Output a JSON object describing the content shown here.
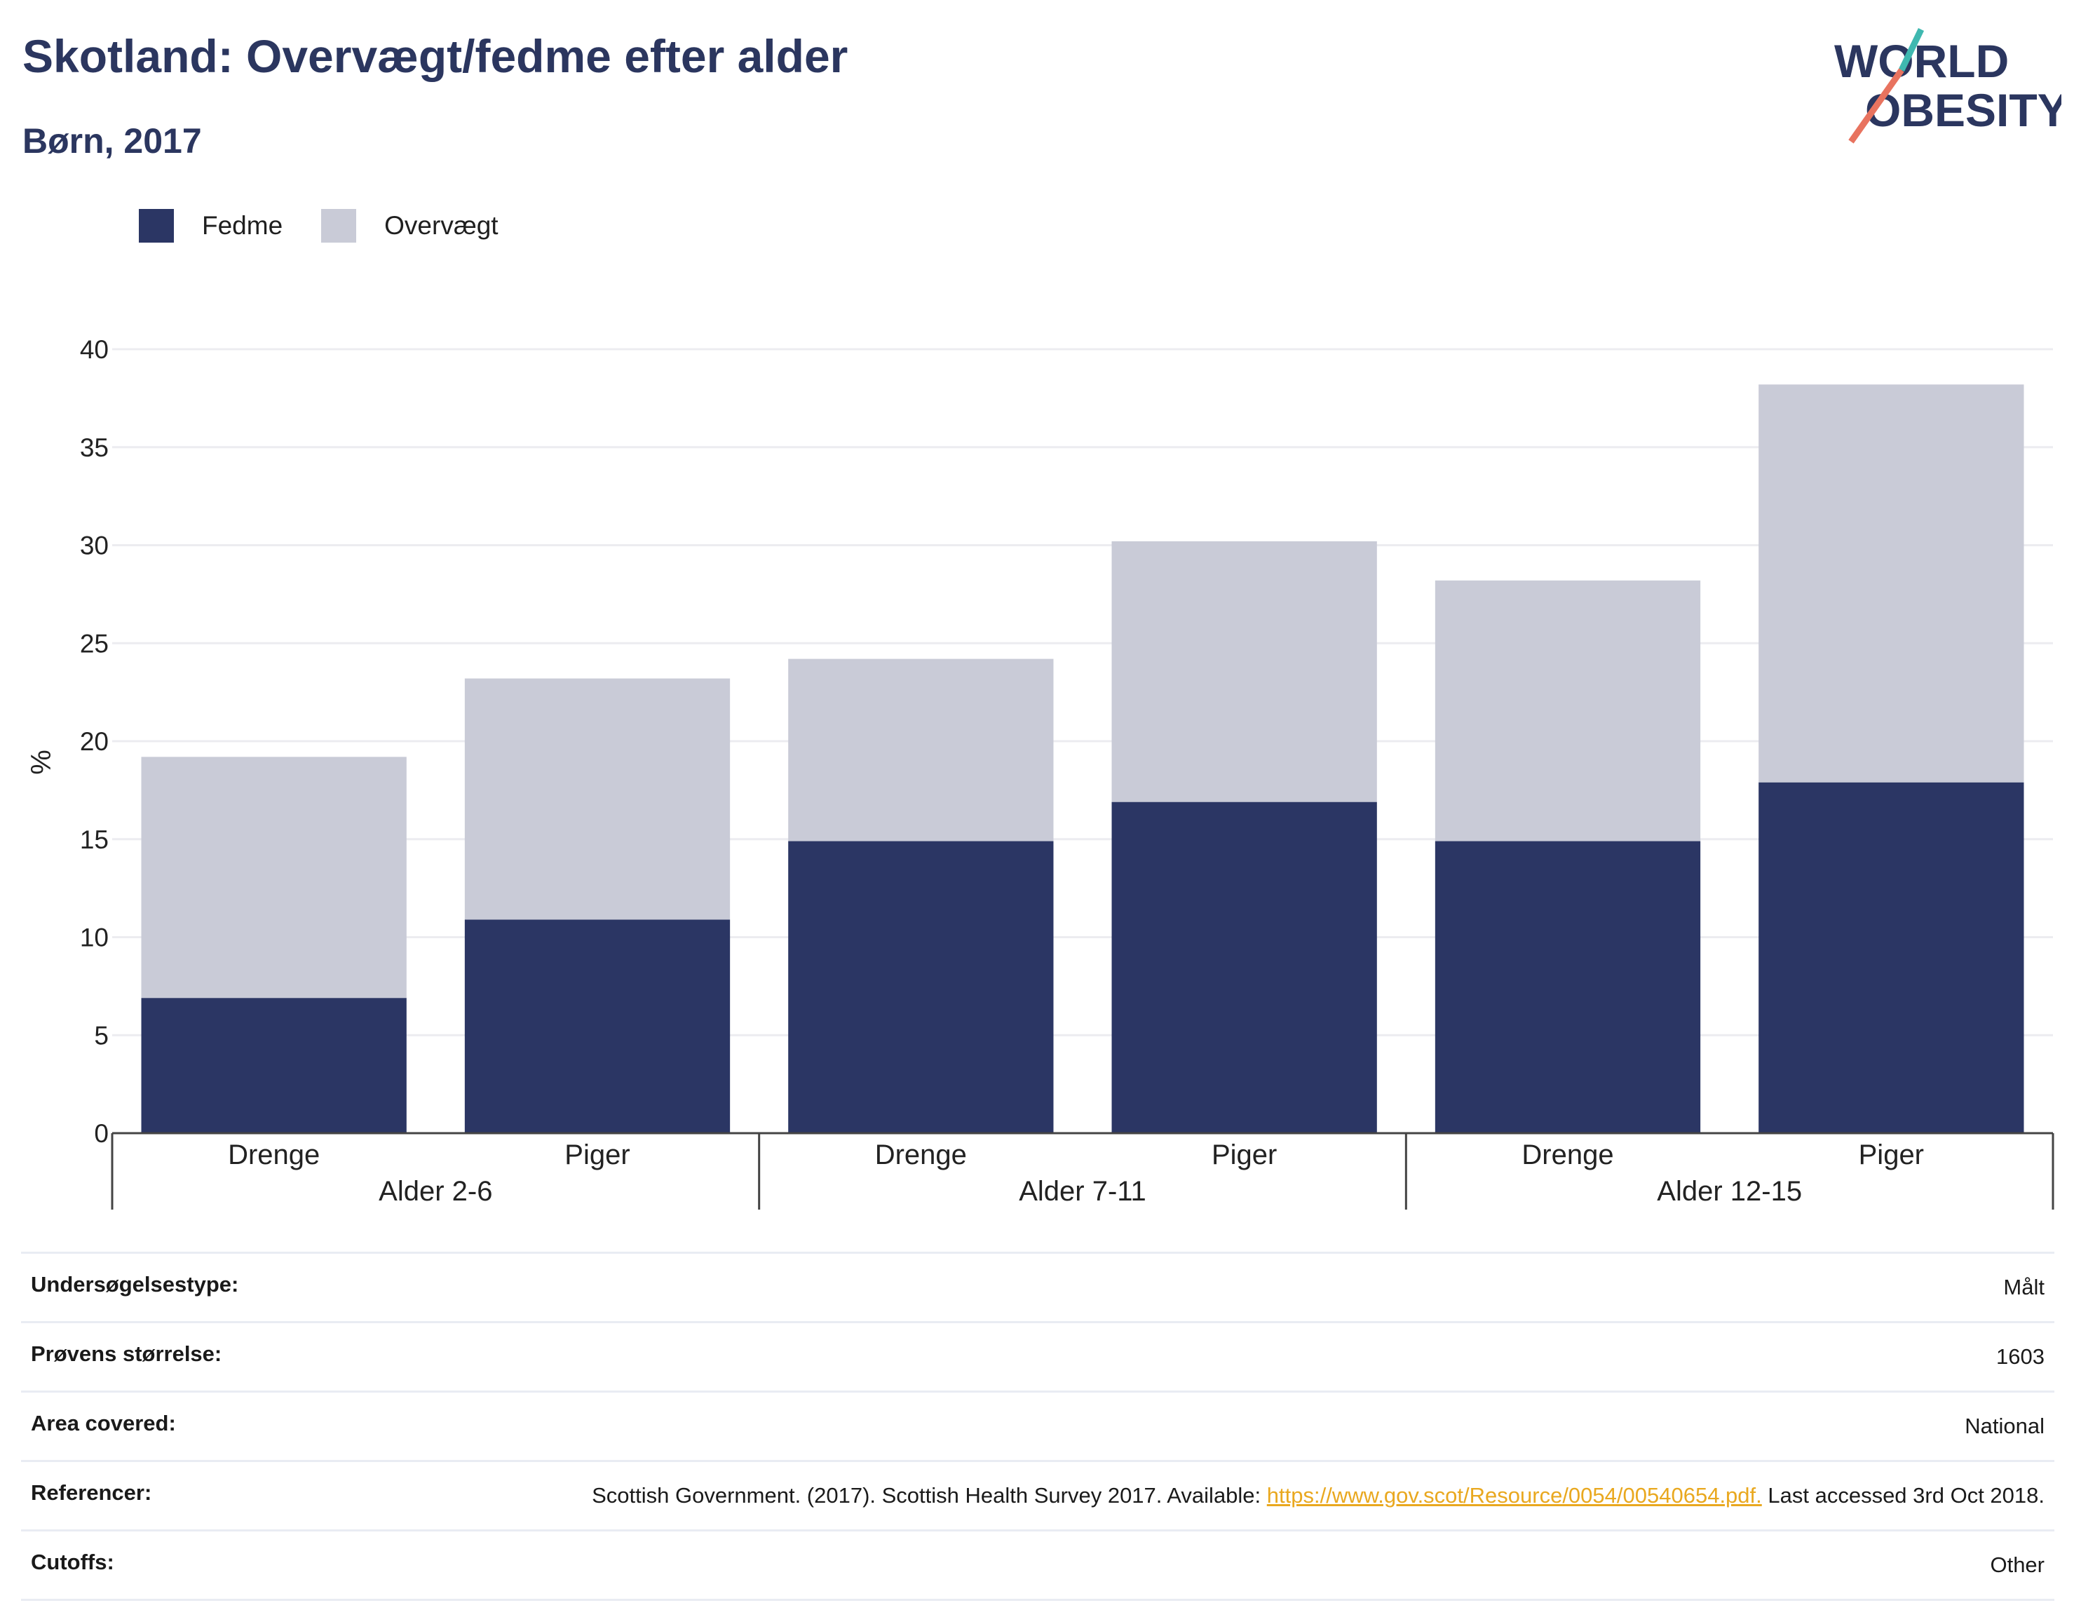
{
  "header": {
    "title": "Skotland: Overvægt/fedme efter alder",
    "subtitle": "Børn, 2017",
    "logo_line1": "WORLD",
    "logo_line2": "OBESITY"
  },
  "colors": {
    "fedme": "#2b3664",
    "overvaegt": "#c9cbd7",
    "title": "#2b365f",
    "logo_teal": "#3fb8b0",
    "logo_coral": "#e8735f",
    "link": "#e9a81f"
  },
  "legend": [
    {
      "label": "Fedme",
      "color": "#2b3664"
    },
    {
      "label": "Overvægt",
      "color": "#c9cbd7"
    }
  ],
  "chart_data": {
    "type": "bar",
    "stacked": true,
    "ylabel": "%",
    "ylim": [
      0,
      40
    ],
    "yticks": [
      0,
      5,
      10,
      15,
      20,
      25,
      30,
      35,
      40
    ],
    "grid": true,
    "legend_position": "top-left",
    "groups": [
      {
        "label": "Alder 2-6",
        "categories": [
          "Drenge",
          "Piger"
        ]
      },
      {
        "label": "Alder 7-11",
        "categories": [
          "Drenge",
          "Piger"
        ]
      },
      {
        "label": "Alder 12-15",
        "categories": [
          "Drenge",
          "Piger"
        ]
      }
    ],
    "categories": [
      "Drenge",
      "Piger",
      "Drenge",
      "Piger",
      "Drenge",
      "Piger"
    ],
    "series": [
      {
        "name": "Fedme",
        "values": [
          6.9,
          10.9,
          14.9,
          16.9,
          14.9,
          17.9
        ]
      },
      {
        "name": "Overvægt",
        "values": [
          12.3,
          12.3,
          9.3,
          13.3,
          13.3,
          20.3
        ]
      }
    ]
  },
  "info": {
    "survey_type": {
      "label": "Undersøgelsestype:",
      "value": "Målt"
    },
    "sample_size": {
      "label": "Prøvens størrelse:",
      "value": "1603"
    },
    "area": {
      "label": "Area covered:",
      "value": "National"
    },
    "references": {
      "label": "Referencer:",
      "text_before": "Scottish Government. (2017). Scottish Health Survey 2017. Available: ",
      "link": "https://www.gov.scot/Resource/0054/00540654.pdf.",
      "text_after": " Last accessed 3rd Oct 2018."
    },
    "cutoffs": {
      "label": "Cutoffs:",
      "value": "Other"
    }
  }
}
